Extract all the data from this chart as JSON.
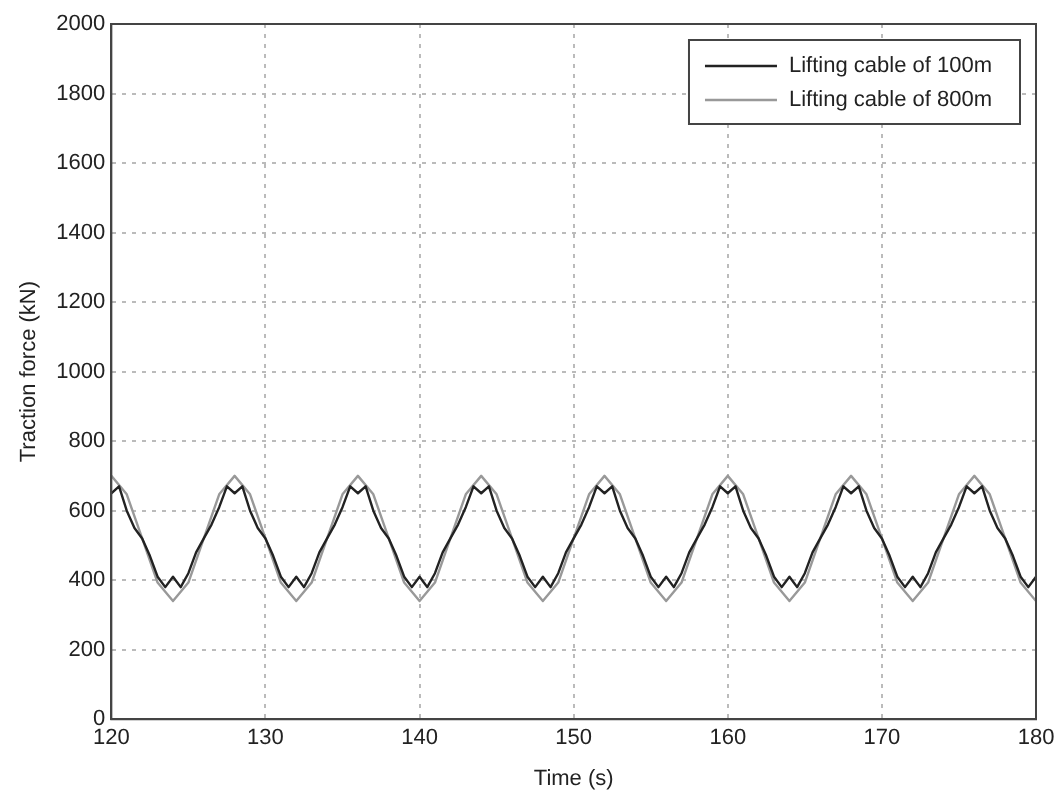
{
  "chart_data": {
    "type": "line",
    "xlabel": "Time (s)",
    "ylabel": "Traction force (kN)",
    "xlim": [
      120,
      180
    ],
    "xticks": [
      120,
      130,
      140,
      150,
      160,
      170,
      180
    ],
    "ylim": [
      0,
      2000
    ],
    "yticks": [
      0,
      200,
      400,
      600,
      800,
      1000,
      1200,
      1400,
      1600,
      1800,
      2000
    ],
    "grid": true,
    "legend": "top right",
    "marker": "none",
    "series": [
      {
        "name": "Lifting cable of 100m",
        "color": "#222222",
        "x": [
          120,
          120.5,
          121,
          121.5,
          122,
          122.5,
          123,
          123.5,
          124,
          124.5,
          125,
          125.5,
          126,
          126.5,
          127,
          127.5,
          128,
          128.5,
          129,
          129.5,
          130,
          130.5,
          131,
          131.5,
          132,
          132.5,
          133,
          133.5,
          134,
          134.5,
          135,
          135.5,
          136,
          136.5,
          137,
          137.5,
          138,
          138.5,
          139,
          139.5,
          140,
          140.5,
          141,
          141.5,
          142,
          142.5,
          143,
          143.5,
          144,
          144.5,
          145,
          145.5,
          146,
          146.5,
          147,
          147.5,
          148,
          148.5,
          149,
          149.5,
          150,
          150.5,
          151,
          151.5,
          152,
          152.5,
          153,
          153.5,
          154,
          154.5,
          155,
          155.5,
          156,
          156.5,
          157,
          157.5,
          158,
          158.5,
          159,
          159.5,
          160,
          160.5,
          161,
          161.5,
          162,
          162.5,
          163,
          163.5,
          164,
          164.5,
          165,
          165.5,
          166,
          166.5,
          167,
          167.5,
          168,
          168.5,
          169,
          169.5,
          170,
          170.5,
          171,
          171.5,
          172,
          172.5,
          173,
          173.5,
          174,
          174.5,
          175,
          175.5,
          176,
          176.5,
          177,
          177.5,
          178,
          178.5,
          179,
          179.5,
          180
        ],
        "values": [
          650,
          670,
          600,
          550,
          520,
          470,
          410,
          380,
          410,
          380,
          420,
          480,
          520,
          560,
          610,
          670,
          650,
          670,
          600,
          550,
          520,
          470,
          410,
          380,
          410,
          380,
          420,
          480,
          520,
          560,
          610,
          670,
          650,
          670,
          600,
          550,
          520,
          470,
          410,
          380,
          410,
          380,
          420,
          480,
          520,
          560,
          610,
          670,
          650,
          670,
          600,
          550,
          520,
          470,
          410,
          380,
          410,
          380,
          420,
          480,
          520,
          560,
          610,
          670,
          650,
          670,
          600,
          550,
          520,
          470,
          410,
          380,
          410,
          380,
          420,
          480,
          520,
          560,
          610,
          670,
          650,
          670,
          600,
          550,
          520,
          470,
          410,
          380,
          410,
          380,
          420,
          480,
          520,
          560,
          610,
          670,
          650,
          670,
          600,
          550,
          520,
          470,
          410,
          380,
          410,
          380,
          420,
          480,
          520,
          560,
          610,
          670,
          650,
          670,
          600,
          550,
          520,
          470,
          410,
          380,
          410
        ]
      },
      {
        "name": "Lifting cable of 800m",
        "color": "#999999",
        "x": [
          120,
          121,
          122,
          123,
          124,
          125,
          126,
          127,
          128,
          129,
          130,
          131,
          132,
          133,
          134,
          135,
          136,
          137,
          138,
          139,
          140,
          141,
          142,
          143,
          144,
          145,
          146,
          147,
          148,
          149,
          150,
          151,
          152,
          153,
          154,
          155,
          156,
          157,
          158,
          159,
          160,
          161,
          162,
          163,
          164,
          165,
          166,
          167,
          168,
          169,
          170,
          171,
          172,
          173,
          174,
          175,
          176,
          177,
          178,
          179,
          180
        ],
        "values": [
          700,
          647,
          520,
          393,
          340,
          393,
          520,
          647,
          700,
          647,
          520,
          393,
          340,
          393,
          520,
          647,
          700,
          647,
          520,
          393,
          340,
          393,
          520,
          647,
          700,
          647,
          520,
          393,
          340,
          393,
          520,
          647,
          700,
          647,
          520,
          393,
          340,
          393,
          520,
          647,
          700,
          647,
          520,
          393,
          340,
          393,
          520,
          647,
          700,
          647,
          520,
          393,
          340,
          393,
          520,
          647,
          700,
          647,
          520,
          393,
          340
        ]
      }
    ]
  }
}
